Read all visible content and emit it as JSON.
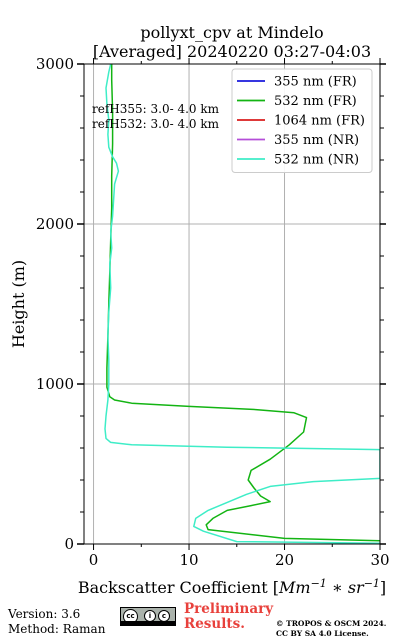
{
  "chart_data": {
    "type": "line",
    "title_line1": "pollyxt_cpv at Mindelo",
    "title_line2": "[Averaged] 20240220 03:27-04:03",
    "xlabel": "Backscatter Coefficient [",
    "xlabel_math": "Mm",
    "xlabel_exp1": "−1",
    "xlabel_mid": " ∗ ",
    "xlabel_math2": "sr",
    "xlabel_exp2": "−1",
    "xlabel_end": "]",
    "ylabel": "Height (m)",
    "xlim": [
      -1,
      30
    ],
    "ylim": [
      0,
      3000
    ],
    "x_ticks": [
      0,
      10,
      20,
      30
    ],
    "y_ticks": [
      0,
      1000,
      2000,
      3000
    ],
    "grid": true,
    "legend_position": "top-right",
    "annotations": [
      "refH355:  3.0- 4.0 km",
      "refH532:  3.0- 4.0 km"
    ],
    "series": [
      {
        "name": "355 nm (FR)",
        "color": "#1a1adb",
        "points": []
      },
      {
        "name": "532 nm (FR)",
        "color": "#13b413",
        "points": [
          [
            30,
            20
          ],
          [
            20,
            35
          ],
          [
            12,
            90
          ],
          [
            11.8,
            120
          ],
          [
            12.5,
            160
          ],
          [
            14,
            210
          ],
          [
            16.5,
            240
          ],
          [
            18.5,
            265
          ],
          [
            17.5,
            300
          ],
          [
            16.8,
            350
          ],
          [
            16.2,
            400
          ],
          [
            16.5,
            460
          ],
          [
            18.5,
            530
          ],
          [
            20.5,
            620
          ],
          [
            22,
            700
          ],
          [
            22.3,
            790
          ],
          [
            21,
            820
          ],
          [
            17,
            840
          ],
          [
            10,
            860
          ],
          [
            4,
            880
          ],
          [
            2.2,
            900
          ],
          [
            1.7,
            920
          ],
          [
            1.4,
            980
          ],
          [
            1.4,
            1100
          ],
          [
            1.5,
            1300
          ],
          [
            1.6,
            1500
          ],
          [
            1.7,
            1700
          ],
          [
            1.8,
            1900
          ],
          [
            1.9,
            2100
          ],
          [
            1.9,
            2300
          ],
          [
            2.0,
            2500
          ],
          [
            2.0,
            2700
          ],
          [
            1.9,
            2900
          ],
          [
            1.9,
            3000
          ]
        ]
      },
      {
        "name": "1064 nm (FR)",
        "color": "#d91d1d",
        "points": []
      },
      {
        "name": "355 nm (NR)",
        "color": "#b44ed9",
        "points": []
      },
      {
        "name": "532 nm (NR)",
        "color": "#3eedc7",
        "points": [
          [
            30,
            5
          ],
          [
            15,
            15
          ],
          [
            11.5,
            80
          ],
          [
            10.5,
            110
          ],
          [
            10.7,
            160
          ],
          [
            12,
            210
          ],
          [
            14,
            260
          ],
          [
            16,
            310
          ],
          [
            18.5,
            360
          ],
          [
            23,
            390
          ],
          [
            30,
            410
          ],
          [
            30,
            590
          ],
          [
            14,
            605
          ],
          [
            4,
            620
          ],
          [
            1.8,
            635
          ],
          [
            1.3,
            660
          ],
          [
            1.2,
            720
          ],
          [
            1.3,
            800
          ],
          [
            1.5,
            900
          ],
          [
            1.6,
            1000
          ],
          [
            1.6,
            1150
          ],
          [
            1.5,
            1300
          ],
          [
            1.6,
            1450
          ],
          [
            1.8,
            1600
          ],
          [
            1.7,
            1750
          ],
          [
            1.9,
            1850
          ],
          [
            1.8,
            1950
          ],
          [
            2.0,
            2050
          ],
          [
            2.1,
            2150
          ],
          [
            2.2,
            2250
          ],
          [
            2.6,
            2330
          ],
          [
            2.4,
            2380
          ],
          [
            2.0,
            2420
          ],
          [
            1.6,
            2480
          ],
          [
            1.5,
            2560
          ],
          [
            1.6,
            2650
          ],
          [
            1.4,
            2750
          ],
          [
            1.3,
            2850
          ],
          [
            1.6,
            2950
          ],
          [
            1.8,
            3000
          ]
        ]
      }
    ]
  },
  "footer": {
    "version": "Version: 3.6",
    "method": "Method: Raman",
    "cc_label": "cc",
    "cc_i": "i",
    "cc_c": "c",
    "preliminary_line1": "Preliminary",
    "preliminary_line2": "Results.",
    "license_line1": "© TROPOS & OSCM 2024.",
    "license_line2": "CC BY SA 4.0 License."
  }
}
